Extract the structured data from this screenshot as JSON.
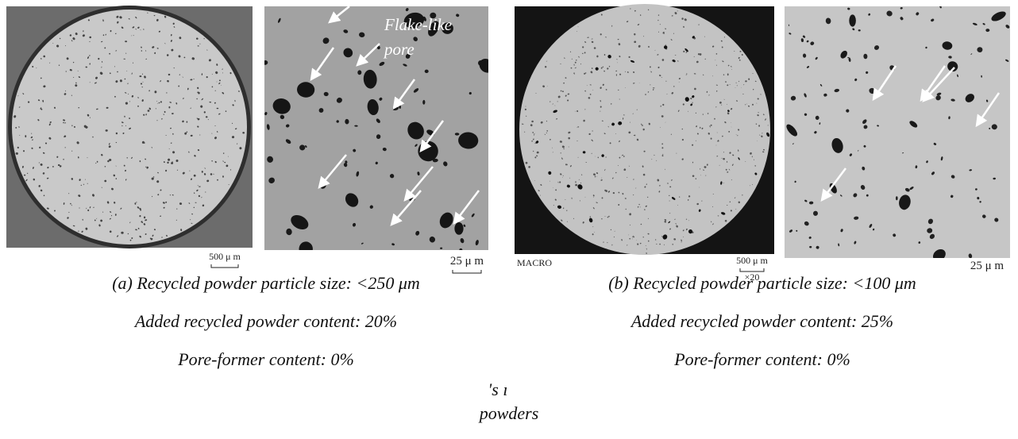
{
  "images": {
    "a_right_annotation": [
      "Flake-like",
      "pore"
    ],
    "a_left_scale": "500 μ m",
    "a_right_scale": "25 μ m",
    "b_left_label": "MACRO",
    "b_left_scale": "500 μ m",
    "b_left_mag": "×20",
    "b_right_scale": "25 μ m"
  },
  "captions": {
    "a": [
      "(a) Recycled powder particle size: <250 μm",
      "Added recycled powder content: 20%",
      "Pore-former content: 0%"
    ],
    "b": [
      "(b) Recycled powder particle size: <100 μm",
      "Added recycled powder content: 25%",
      "Pore-former content: 0%"
    ]
  },
  "fragments": [
    "'s ı",
    "powders"
  ]
}
